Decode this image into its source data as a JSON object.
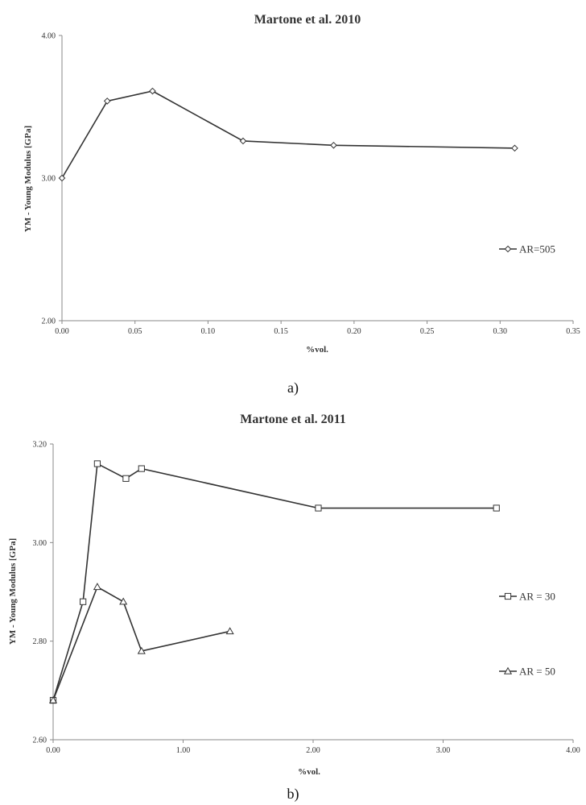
{
  "chart_data": [
    {
      "type": "line",
      "title": "Martone et al. 2010",
      "xlabel": "%vol.",
      "ylabel": "YM - Young Modulus [GPa]",
      "xlim": [
        0,
        0.35
      ],
      "ylim": [
        2.0,
        4.0
      ],
      "x_ticks": [
        "0.00",
        "0.05",
        "0.10",
        "0.15",
        "0.20",
        "0.25",
        "0.30",
        "0.35"
      ],
      "y_ticks": [
        "2.00",
        "3.00",
        "4.00"
      ],
      "legend_position": "right",
      "caption": "a)",
      "series": [
        {
          "name": "AR=505",
          "marker": "diamond",
          "x": [
            0.0,
            0.031,
            0.062,
            0.124,
            0.186,
            0.31
          ],
          "y": [
            3.0,
            3.54,
            3.61,
            3.26,
            3.23,
            3.21
          ]
        }
      ]
    },
    {
      "type": "line",
      "title": "Martone et al. 2011",
      "xlabel": "%vol.",
      "ylabel": "YM - Young Modulus [GPa]",
      "xlim": [
        0,
        4.0
      ],
      "ylim": [
        2.6,
        3.2
      ],
      "x_ticks": [
        "0.00",
        "1.00",
        "2.00",
        "3.00",
        "4.00"
      ],
      "y_ticks": [
        "2.60",
        "2.80",
        "3.00",
        "3.20"
      ],
      "legend_position": "right",
      "caption": "b)",
      "series": [
        {
          "name": "AR = 30",
          "marker": "square",
          "x": [
            0.0,
            0.23,
            0.34,
            0.56,
            0.68,
            2.04,
            3.41
          ],
          "y": [
            2.68,
            2.88,
            3.16,
            3.13,
            3.15,
            3.07,
            3.07
          ]
        },
        {
          "name": "AR = 50",
          "marker": "triangle",
          "x": [
            0.0,
            0.34,
            0.54,
            0.68,
            1.36
          ],
          "y": [
            2.68,
            2.91,
            2.88,
            2.78,
            2.82
          ]
        }
      ]
    }
  ]
}
